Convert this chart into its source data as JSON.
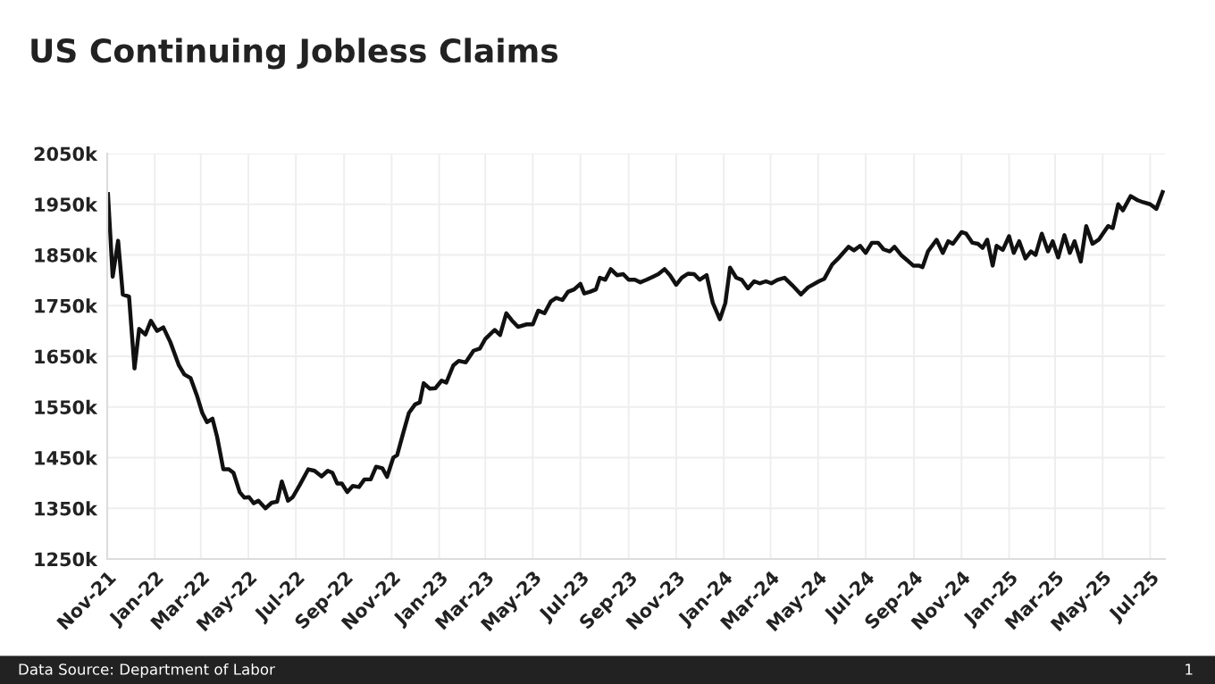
{
  "chart_data": {
    "type": "line",
    "title": "US Continuing Jobless Claims",
    "annotations": [
      "Data Source: Department of Labor",
      "1"
    ],
    "x": [
      "2021-11-02",
      "2021-11-08",
      "2021-11-15",
      "2021-11-21",
      "2021-11-29",
      "2021-12-06",
      "2021-12-12",
      "2021-12-20",
      "2021-12-27",
      "2022-01-04",
      "2022-01-12",
      "2022-01-21",
      "2022-02-01",
      "2022-02-08",
      "2022-02-16",
      "2022-02-24",
      "2022-03-03",
      "2022-03-09",
      "2022-03-16",
      "2022-03-22",
      "2022-03-30",
      "2022-04-06",
      "2022-04-12",
      "2022-04-20",
      "2022-04-26",
      "2022-05-02",
      "2022-05-08",
      "2022-05-14",
      "2022-05-23",
      "2022-05-31",
      "2022-06-07",
      "2022-06-13",
      "2022-06-21",
      "2022-06-27",
      "2022-07-06",
      "2022-07-17",
      "2022-07-25",
      "2022-08-03",
      "2022-08-11",
      "2022-08-17",
      "2022-08-23",
      "2022-08-29",
      "2022-09-05",
      "2022-09-12",
      "2022-09-20",
      "2022-09-27",
      "2022-10-05",
      "2022-10-12",
      "2022-10-20",
      "2022-10-26",
      "2022-11-03",
      "2022-11-08",
      "2022-11-16",
      "2022-11-23",
      "2022-12-01",
      "2022-12-07",
      "2022-12-12",
      "2022-12-20",
      "2022-12-27",
      "2023-01-04",
      "2023-01-10",
      "2023-01-19",
      "2023-01-26",
      "2023-02-04",
      "2023-02-14",
      "2023-02-22",
      "2023-03-01",
      "2023-03-13",
      "2023-03-20",
      "2023-03-28",
      "2023-04-04",
      "2023-04-12",
      "2023-04-23",
      "2023-05-01",
      "2023-05-08",
      "2023-05-16",
      "2023-05-24",
      "2023-05-31",
      "2023-06-08",
      "2023-06-15",
      "2023-06-23",
      "2023-07-01",
      "2023-07-06",
      "2023-07-13",
      "2023-07-21",
      "2023-07-26",
      "2023-08-02",
      "2023-08-09",
      "2023-08-17",
      "2023-08-25",
      "2023-09-01",
      "2023-09-09",
      "2023-09-16",
      "2023-09-24",
      "2023-10-02",
      "2023-10-09",
      "2023-10-17",
      "2023-10-24",
      "2023-11-01",
      "2023-11-08",
      "2023-11-16",
      "2023-11-24",
      "2023-12-01",
      "2023-12-10",
      "2023-12-18",
      "2023-12-27",
      "2024-01-03",
      "2024-01-09",
      "2024-01-17",
      "2024-01-24",
      "2024-02-01",
      "2024-02-09",
      "2024-02-16",
      "2024-02-24",
      "2024-03-02",
      "2024-03-10",
      "2024-03-19",
      "2024-03-29",
      "2024-04-09",
      "2024-04-18",
      "2024-05-02",
      "2024-05-09",
      "2024-05-19",
      "2024-05-28",
      "2024-06-09",
      "2024-06-16",
      "2024-06-24",
      "2024-07-01",
      "2024-07-09",
      "2024-07-17",
      "2024-07-24",
      "2024-08-01",
      "2024-08-07",
      "2024-08-16",
      "2024-08-23",
      "2024-08-31",
      "2024-09-07",
      "2024-09-12",
      "2024-09-19",
      "2024-09-30",
      "2024-10-08",
      "2024-10-15",
      "2024-10-21",
      "2024-11-01",
      "2024-11-07",
      "2024-11-15",
      "2024-11-22",
      "2024-11-28",
      "2024-12-04",
      "2024-12-11",
      "2024-12-16",
      "2024-12-24",
      "2025-01-01",
      "2025-01-07",
      "2025-01-14",
      "2025-01-22",
      "2025-01-29",
      "2025-02-04",
      "2025-02-12",
      "2025-02-20",
      "2025-02-26",
      "2025-03-05",
      "2025-03-13",
      "2025-03-20",
      "2025-03-26",
      "2025-04-03",
      "2025-04-10",
      "2025-04-18",
      "2025-04-26",
      "2025-05-08",
      "2025-05-14",
      "2025-05-21",
      "2025-05-27",
      "2025-06-06",
      "2025-06-15",
      "2025-06-22",
      "2025-07-01",
      "2025-07-09",
      "2025-07-17"
    ],
    "series": [
      {
        "color": "#111111",
        "values": [
          1970,
          1807,
          1878,
          1772,
          1768,
          1626,
          1704,
          1693,
          1720,
          1700,
          1707,
          1678,
          1632,
          1614,
          1607,
          1573,
          1538,
          1520,
          1527,
          1491,
          1427,
          1427,
          1420,
          1382,
          1371,
          1372,
          1360,
          1365,
          1350,
          1361,
          1363,
          1403,
          1365,
          1372,
          1396,
          1427,
          1424,
          1413,
          1424,
          1420,
          1399,
          1399,
          1382,
          1394,
          1392,
          1407,
          1407,
          1432,
          1429,
          1412,
          1450,
          1455,
          1500,
          1538,
          1555,
          1559,
          1597,
          1586,
          1587,
          1602,
          1598,
          1632,
          1641,
          1638,
          1661,
          1665,
          1684,
          1702,
          1692,
          1735,
          1721,
          1708,
          1713,
          1713,
          1740,
          1735,
          1758,
          1765,
          1761,
          1777,
          1782,
          1793,
          1774,
          1777,
          1782,
          1805,
          1801,
          1822,
          1810,
          1812,
          1801,
          1801,
          1796,
          1801,
          1807,
          1812,
          1822,
          1810,
          1791,
          1805,
          1813,
          1812,
          1801,
          1810,
          1755,
          1723,
          1755,
          1825,
          1805,
          1801,
          1784,
          1798,
          1794,
          1798,
          1794,
          1801,
          1805,
          1790,
          1772,
          1786,
          1798,
          1803,
          1831,
          1845,
          1866,
          1859,
          1868,
          1854,
          1874,
          1874,
          1861,
          1857,
          1866,
          1849,
          1840,
          1829,
          1829,
          1826,
          1857,
          1880,
          1854,
          1877,
          1872,
          1895,
          1892,
          1874,
          1872,
          1864,
          1880,
          1829,
          1868,
          1860,
          1887,
          1854,
          1877,
          1843,
          1857,
          1850,
          1892,
          1857,
          1877,
          1845,
          1889,
          1854,
          1877,
          1837,
          1907,
          1872,
          1880,
          1907,
          1903,
          1950,
          1938,
          1966,
          1958,
          1954,
          1950,
          1941,
          1974
        ]
      }
    ],
    "xlim": [
      "2021-11-01",
      "2025-07-20"
    ],
    "xticks": [
      {
        "value": "2021-11-01",
        "label": "Nov-21"
      },
      {
        "value": "2022-01-01",
        "label": "Jan-22"
      },
      {
        "value": "2022-03-01",
        "label": "Mar-22"
      },
      {
        "value": "2022-05-01",
        "label": "May-22"
      },
      {
        "value": "2022-07-01",
        "label": "Jul-22"
      },
      {
        "value": "2022-09-01",
        "label": "Sep-22"
      },
      {
        "value": "2022-11-01",
        "label": "Nov-22"
      },
      {
        "value": "2023-01-01",
        "label": "Jan-23"
      },
      {
        "value": "2023-03-01",
        "label": "Mar-23"
      },
      {
        "value": "2023-05-01",
        "label": "May-23"
      },
      {
        "value": "2023-07-01",
        "label": "Jul-23"
      },
      {
        "value": "2023-09-01",
        "label": "Sep-23"
      },
      {
        "value": "2023-11-01",
        "label": "Nov-23"
      },
      {
        "value": "2024-01-01",
        "label": "Jan-24"
      },
      {
        "value": "2024-03-01",
        "label": "Mar-24"
      },
      {
        "value": "2024-05-01",
        "label": "May-24"
      },
      {
        "value": "2024-07-01",
        "label": "Jul-24"
      },
      {
        "value": "2024-09-01",
        "label": "Sep-24"
      },
      {
        "value": "2024-11-01",
        "label": "Nov-24"
      },
      {
        "value": "2025-01-01",
        "label": "Jan-25"
      },
      {
        "value": "2025-03-01",
        "label": "Mar-25"
      },
      {
        "value": "2025-05-01",
        "label": "May-25"
      },
      {
        "value": "2025-07-01",
        "label": "Jul-25"
      }
    ],
    "ylim": [
      1250,
      2050
    ],
    "yticks": [
      {
        "value": 1250,
        "label": "1250k"
      },
      {
        "value": 1350,
        "label": "1350k"
      },
      {
        "value": 1450,
        "label": "1450k"
      },
      {
        "value": 1550,
        "label": "1550k"
      },
      {
        "value": 1650,
        "label": "1650k"
      },
      {
        "value": 1750,
        "label": "1750k"
      },
      {
        "value": 1850,
        "label": "1850k"
      },
      {
        "value": 1950,
        "label": "1950k"
      },
      {
        "value": 2050,
        "label": "2050k"
      }
    ],
    "grid": true,
    "line_style": "solid",
    "marker": "none"
  }
}
